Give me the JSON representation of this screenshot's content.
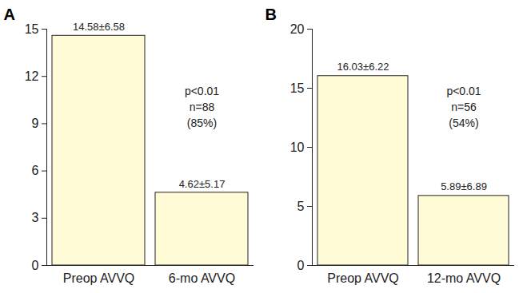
{
  "chart_data": [
    {
      "type": "bar",
      "title": "A",
      "categories": [
        "Preop AVVQ",
        "6-mo AVVQ"
      ],
      "values": [
        14.58,
        4.62
      ],
      "value_labels": [
        "14.58±6.58",
        "4.62±5.17"
      ],
      "data_labels": true,
      "color": "#fffbd7",
      "ylim": [
        0,
        15
      ],
      "yticks": [
        0,
        3,
        6,
        9,
        12,
        15
      ],
      "annotations": [
        "p<0.01",
        "n=88",
        "(85%)"
      ]
    },
    {
      "type": "bar",
      "title": "B",
      "categories": [
        "Preop AVVQ",
        "12-mo AVVQ"
      ],
      "values": [
        16.03,
        5.89
      ],
      "value_labels": [
        "16.03±6.22",
        "5.89±6.89"
      ],
      "data_labels": true,
      "color": "#fffbd7",
      "ylim": [
        0,
        20
      ],
      "yticks": [
        0,
        5,
        10,
        15,
        20
      ],
      "annotations": [
        "p<0.01",
        "n=56",
        "(54%)"
      ]
    }
  ]
}
